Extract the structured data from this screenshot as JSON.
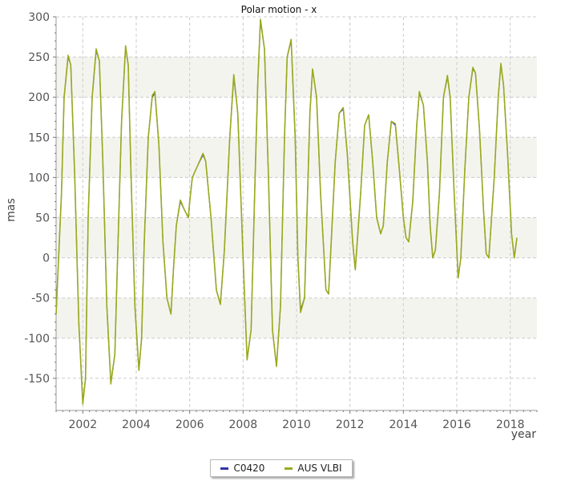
{
  "chart_data": {
    "type": "line",
    "title": "Polar motion - x",
    "xlabel": "year",
    "ylabel": "mas",
    "xlim": [
      2001.0,
      2019.0
    ],
    "ylim": [
      -190,
      300
    ],
    "x_ticks": [
      2002,
      2004,
      2006,
      2008,
      2010,
      2012,
      2014,
      2016,
      2018
    ],
    "x_tick_labels": [
      "2002",
      "2004",
      "2006",
      "2008",
      "2010",
      "2012",
      "2014",
      "2016",
      "2018"
    ],
    "y_ticks": [
      -150,
      -100,
      -50,
      0,
      50,
      100,
      150,
      200,
      250,
      300
    ],
    "y_tick_labels": [
      "-150",
      "-100",
      "-50",
      "0",
      "50",
      "100",
      "150",
      "200",
      "250",
      "300"
    ],
    "grid": true,
    "legend_position": "bottom-center",
    "bands": [
      [
        200,
        250
      ],
      [
        100,
        150
      ],
      [
        0,
        50
      ],
      [
        -100,
        -50
      ]
    ],
    "colors": {
      "band": "#f4f4ef",
      "grid": "#cccccc",
      "axis": "#999999"
    },
    "series": [
      {
        "name": "C0420",
        "color": "#3333aa",
        "x": [
          2001.0,
          2001.2,
          2001.3,
          2001.45,
          2001.55,
          2001.7,
          2001.85,
          2002.0,
          2002.1,
          2002.2,
          2002.35,
          2002.5,
          2002.62,
          2002.75,
          2002.9,
          2003.05,
          2003.2,
          2003.3,
          2003.45,
          2003.6,
          2003.7,
          2003.8,
          2003.95,
          2004.1,
          2004.2,
          2004.3,
          2004.45,
          2004.6,
          2004.7,
          2004.85,
          2005.0,
          2005.15,
          2005.3,
          2005.4,
          2005.5,
          2005.65,
          2005.8,
          2005.95,
          2006.0,
          2006.1,
          2006.3,
          2006.5,
          2006.6,
          2006.8,
          2007.0,
          2007.15,
          2007.3,
          2007.5,
          2007.65,
          2007.8,
          2008.0,
          2008.15,
          2008.3,
          2008.45,
          2008.55,
          2008.65,
          2008.8,
          2008.95,
          2009.1,
          2009.25,
          2009.4,
          2009.55,
          2009.65,
          2009.8,
          2009.95,
          2010.05,
          2010.15,
          2010.3,
          2010.5,
          2010.6,
          2010.75,
          2010.9,
          2011.1,
          2011.2,
          2011.3,
          2011.45,
          2011.6,
          2011.75,
          2011.9,
          2012.1,
          2012.2,
          2012.4,
          2012.55,
          2012.7,
          2012.85,
          2013.0,
          2013.15,
          2013.25,
          2013.4,
          2013.55,
          2013.7,
          2013.85,
          2014.0,
          2014.1,
          2014.2,
          2014.35,
          2014.5,
          2014.6,
          2014.75,
          2014.9,
          2015.0,
          2015.1,
          2015.2,
          2015.35,
          2015.5,
          2015.65,
          2015.75,
          2015.9,
          2016.05,
          2016.15,
          2016.3,
          2016.45,
          2016.6,
          2016.7,
          2016.85,
          2017.0,
          2017.1,
          2017.2,
          2017.4,
          2017.55,
          2017.65,
          2017.75,
          2017.9,
          2018.05,
          2018.15,
          2018.25
        ],
        "y": [
          -70,
          80,
          200,
          250,
          240,
          100,
          -80,
          -180,
          -150,
          50,
          200,
          258,
          245,
          120,
          -60,
          -155,
          -120,
          0,
          170,
          262,
          240,
          110,
          -60,
          -140,
          -100,
          20,
          150,
          200,
          205,
          140,
          20,
          -50,
          -70,
          -10,
          40,
          70,
          60,
          50,
          70,
          100,
          115,
          128,
          120,
          50,
          -40,
          -58,
          10,
          150,
          225,
          180,
          0,
          -125,
          -90,
          100,
          220,
          295,
          260,
          100,
          -90,
          -135,
          -60,
          150,
          250,
          270,
          150,
          0,
          -65,
          -50,
          180,
          235,
          200,
          80,
          -40,
          -45,
          20,
          120,
          180,
          185,
          130,
          20,
          -15,
          80,
          165,
          178,
          120,
          50,
          30,
          40,
          120,
          170,
          165,
          110,
          50,
          25,
          20,
          70,
          165,
          205,
          190,
          120,
          40,
          0,
          10,
          80,
          200,
          225,
          200,
          80,
          -25,
          0,
          110,
          200,
          235,
          230,
          160,
          60,
          5,
          0,
          100,
          200,
          240,
          215,
          130,
          30,
          0,
          25
        ]
      },
      {
        "name": "AUS VLBI",
        "color": "#9aaa1e",
        "x": [
          2001.0,
          2001.2,
          2001.3,
          2001.45,
          2001.55,
          2001.7,
          2001.85,
          2002.0,
          2002.1,
          2002.2,
          2002.35,
          2002.5,
          2002.62,
          2002.75,
          2002.9,
          2003.05,
          2003.2,
          2003.3,
          2003.45,
          2003.6,
          2003.7,
          2003.8,
          2003.95,
          2004.1,
          2004.2,
          2004.3,
          2004.45,
          2004.6,
          2004.7,
          2004.85,
          2005.0,
          2005.15,
          2005.3,
          2005.4,
          2005.5,
          2005.65,
          2005.8,
          2005.95,
          2006.0,
          2006.1,
          2006.3,
          2006.5,
          2006.6,
          2006.8,
          2007.0,
          2007.15,
          2007.3,
          2007.5,
          2007.65,
          2007.8,
          2008.0,
          2008.15,
          2008.3,
          2008.45,
          2008.55,
          2008.65,
          2008.8,
          2008.95,
          2009.1,
          2009.25,
          2009.4,
          2009.55,
          2009.65,
          2009.8,
          2009.95,
          2010.05,
          2010.15,
          2010.3,
          2010.5,
          2010.6,
          2010.75,
          2010.9,
          2011.1,
          2011.2,
          2011.3,
          2011.45,
          2011.6,
          2011.75,
          2011.9,
          2012.1,
          2012.2,
          2012.4,
          2012.55,
          2012.7,
          2012.85,
          2013.0,
          2013.15,
          2013.25,
          2013.4,
          2013.55,
          2013.7,
          2013.85,
          2014.0,
          2014.1,
          2014.2,
          2014.35,
          2014.5,
          2014.6,
          2014.75,
          2014.9,
          2015.0,
          2015.1,
          2015.2,
          2015.35,
          2015.5,
          2015.65,
          2015.75,
          2015.9,
          2016.05,
          2016.15,
          2016.3,
          2016.45,
          2016.6,
          2016.7,
          2016.85,
          2017.0,
          2017.1,
          2017.2,
          2017.4,
          2017.55,
          2017.65,
          2017.75,
          2017.9,
          2018.05,
          2018.15,
          2018.25
        ],
        "y": [
          -70,
          80,
          200,
          252,
          240,
          100,
          -80,
          -182,
          -150,
          50,
          200,
          260,
          245,
          120,
          -60,
          -157,
          -120,
          0,
          170,
          264,
          240,
          110,
          -60,
          -140,
          -100,
          20,
          150,
          202,
          207,
          140,
          20,
          -50,
          -70,
          -10,
          40,
          72,
          60,
          50,
          70,
          100,
          115,
          130,
          120,
          50,
          -40,
          -58,
          10,
          150,
          228,
          180,
          0,
          -127,
          -90,
          100,
          220,
          297,
          260,
          100,
          -90,
          -135,
          -60,
          150,
          250,
          272,
          150,
          0,
          -68,
          -50,
          180,
          235,
          200,
          80,
          -40,
          -45,
          20,
          120,
          180,
          187,
          130,
          20,
          -15,
          80,
          165,
          178,
          120,
          50,
          30,
          40,
          120,
          170,
          167,
          110,
          50,
          25,
          20,
          70,
          165,
          207,
          190,
          120,
          40,
          0,
          10,
          80,
          200,
          227,
          200,
          80,
          -25,
          0,
          110,
          200,
          237,
          230,
          160,
          60,
          5,
          0,
          100,
          200,
          242,
          215,
          130,
          30,
          0,
          25
        ]
      }
    ]
  }
}
